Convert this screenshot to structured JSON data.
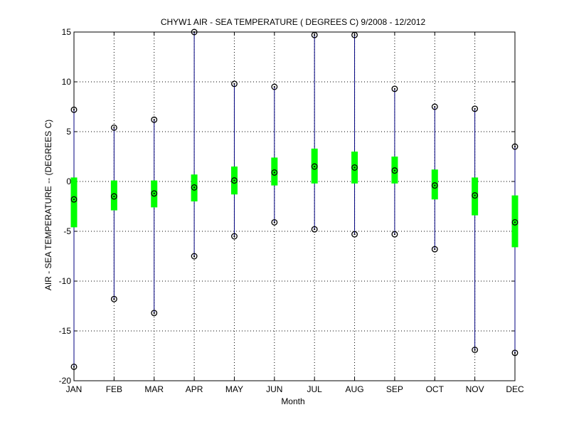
{
  "chart_data": {
    "type": "box",
    "title": "CHYW1  AIR - SEA TEMPERATURE ( DEGREES C) 9/2008 - 12/2012",
    "xlabel": "Month",
    "ylabel": "AIR - SEA TEMPERATURE --  (DEGREES C)",
    "ylim": [
      -20,
      15
    ],
    "yticks": [
      -20,
      -15,
      -10,
      -5,
      0,
      5,
      10,
      15
    ],
    "grid": true,
    "categories": [
      "JAN",
      "FEB",
      "MAR",
      "APR",
      "MAY",
      "JUN",
      "JUL",
      "AUG",
      "SEP",
      "OCT",
      "NOV",
      "DEC"
    ],
    "series": [
      {
        "min": [
          -18.6,
          -11.8,
          -13.2,
          -7.5,
          -5.5,
          -4.1,
          -4.8,
          -5.3,
          -5.3,
          -6.8,
          -16.9,
          -17.2
        ],
        "q1": [
          -4.6,
          -2.9,
          -2.6,
          -2.0,
          -1.3,
          -0.4,
          -0.2,
          -0.2,
          -0.2,
          -1.8,
          -3.4,
          -6.6
        ],
        "median": [
          -1.8,
          -1.5,
          -1.2,
          -0.6,
          0.1,
          0.9,
          1.5,
          1.4,
          1.1,
          -0.4,
          -1.4,
          -4.1
        ],
        "q3": [
          0.4,
          0.1,
          0.1,
          0.7,
          1.5,
          2.4,
          3.3,
          3.0,
          2.5,
          1.2,
          0.4,
          -1.4
        ],
        "max": [
          7.2,
          5.4,
          6.2,
          15.0,
          9.8,
          9.5,
          14.7,
          14.7,
          9.3,
          7.5,
          7.3,
          3.5
        ]
      }
    ],
    "colors": {
      "whisker": "#00007f",
      "box": "#00ff00",
      "marker": "#000000"
    }
  }
}
